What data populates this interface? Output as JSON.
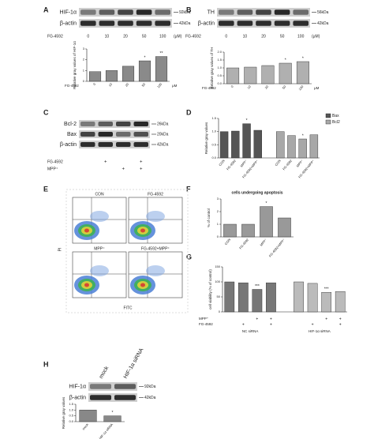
{
  "panel_labels": [
    "A",
    "B",
    "C",
    "D",
    "E",
    "F",
    "G",
    "H"
  ],
  "blots": [
    {
      "bands": [
        "HIF-1α",
        "β-actin"
      ],
      "sizes": [
        "92kDa",
        "42kDa"
      ],
      "treatment": "FG-4592",
      "doses": [
        "0",
        "10",
        "20",
        "50",
        "100"
      ],
      "dose_unit": "(μM)"
    },
    {
      "bands": [
        "TH",
        "β-actin"
      ],
      "sizes": [
        "56kDa",
        "42kDa"
      ],
      "treatment": "FG-4592",
      "doses": [
        "0",
        "10",
        "20",
        "50",
        "100"
      ],
      "dose_unit": "(μM)"
    },
    {
      "bands": [
        "Bcl-2",
        "Bax",
        "β-actin"
      ],
      "sizes": [
        "26kDa",
        "20kDa",
        "42kDa"
      ],
      "rows": [
        {
          "name": "FG-4592",
          "signs": [
            null,
            "+",
            null,
            "+"
          ]
        },
        {
          "name": "MPP⁺",
          "signs": [
            null,
            null,
            "+",
            "+"
          ]
        }
      ]
    },
    {
      "bands": [
        "HIF-1α",
        "β-actin"
      ],
      "sizes": [
        "92kDa",
        "42kDa"
      ],
      "lanes": [
        "mock",
        "HIF-1α siRNA"
      ]
    }
  ],
  "flow": {
    "plots": [
      "CON",
      "FG-4592",
      "MPP⁺",
      "FG-4592+MPP⁺"
    ],
    "ylabel": "PI",
    "xlabel": "FITC"
  },
  "chart_data": [
    {
      "type": "bar",
      "ylabel": "Relative gray values of HIF-1α",
      "xlabel": "FG-4592",
      "unit": "μM",
      "categories": [
        "0",
        "10",
        "20",
        "50",
        "100"
      ],
      "values": [
        0.9,
        1.0,
        1.4,
        1.9,
        2.3
      ],
      "star_labels": [
        null,
        null,
        null,
        "*",
        "**"
      ],
      "color": "#8a8a8a",
      "ylim": [
        0,
        3
      ],
      "yticks": [
        0,
        1,
        2,
        3
      ]
    },
    {
      "type": "bar",
      "ylabel": "Relative gray values of TH",
      "xlabel": "FG-4592",
      "unit": "μM",
      "categories": [
        "0",
        "10",
        "20",
        "50",
        "100"
      ],
      "values": [
        1.0,
        1.05,
        1.15,
        1.3,
        1.4
      ],
      "star_labels": [
        null,
        null,
        null,
        "*",
        "*"
      ],
      "color": "#b0b0b0",
      "ylim": [
        0,
        2
      ],
      "yticks": [
        {
          "value": 0,
          "label": "0.0"
        },
        {
          "value": 0.5,
          "label": "0.5"
        },
        {
          "value": 1,
          "label": "1.0"
        },
        {
          "value": 1.5,
          "label": "1.5"
        },
        {
          "value": 2,
          "label": "2.0"
        }
      ]
    },
    {
      "type": "bar",
      "ylabel": "Relative gray values",
      "legend": "right",
      "categories": [
        "CON",
        "FG-4592",
        "MPP⁺",
        "FG-4592+MPP⁺"
      ],
      "series": [
        {
          "name": "Bax",
          "color": "#555555",
          "values": [
            1.0,
            1.02,
            1.3,
            1.05
          ],
          "star_labels": [
            null,
            null,
            "*",
            null
          ]
        },
        {
          "name": "Bcl2",
          "color": "#a8a8a8",
          "values": [
            1.0,
            0.85,
            0.72,
            0.88
          ],
          "star_labels": [
            null,
            null,
            "*",
            null
          ]
        }
      ],
      "ylim": [
        0,
        1.5
      ],
      "yticks": [
        {
          "value": 0,
          "label": "0.0"
        },
        {
          "value": 0.5,
          "label": "0.5"
        },
        {
          "value": 1,
          "label": "1.0"
        },
        {
          "value": 1.5,
          "label": "1.5"
        }
      ]
    },
    {
      "type": "bar",
      "title": "cells undergoing apoptosis",
      "ylabel": "% of control",
      "categories": [
        "CON",
        "FG-4592",
        "MPP⁺",
        "FG-4592+MPP⁺"
      ],
      "values": [
        1.0,
        1.0,
        2.4,
        1.5
      ],
      "star_labels": [
        null,
        null,
        "*",
        null
      ],
      "color": "#999999",
      "ylim": [
        0,
        3
      ],
      "yticks": [
        0,
        1,
        2,
        3
      ]
    },
    {
      "type": "bar",
      "ylabel": "cell viability (% of control)",
      "rows": [
        {
          "name": "MPP⁺",
          "signs": [
            null,
            null,
            "+",
            "+"
          ]
        },
        {
          "name": "FG-4592",
          "signs": [
            null,
            "+",
            null,
            "+"
          ]
        }
      ],
      "series": [
        {
          "name": "NC siRNA",
          "color": "#777777",
          "values": [
            100,
            97,
            75,
            97
          ],
          "star_labels": [
            null,
            null,
            "***",
            null
          ]
        },
        {
          "name": "HIF-1α siRNA",
          "color": "#bbbbbb",
          "values": [
            100,
            95,
            65,
            68
          ],
          "star_labels": [
            null,
            null,
            "***",
            null
          ]
        }
      ],
      "ylim": [
        0,
        150
      ],
      "yticks": [
        0,
        50,
        100,
        150
      ]
    },
    {
      "type": "bar",
      "ylabel": "Relative gray values",
      "categories": [
        "mock",
        "HIF-1α siRNA"
      ],
      "values": [
        1.0,
        0.5
      ],
      "star_labels": [
        null,
        "*"
      ],
      "color": "#888888",
      "ylim": [
        0,
        1.5
      ],
      "yticks": [
        {
          "value": 0,
          "label": "0.0"
        },
        {
          "value": 0.5,
          "label": "0.5"
        },
        {
          "value": 1,
          "label": "1.0"
        },
        {
          "value": 1.5,
          "label": "1.5"
        }
      ]
    }
  ]
}
